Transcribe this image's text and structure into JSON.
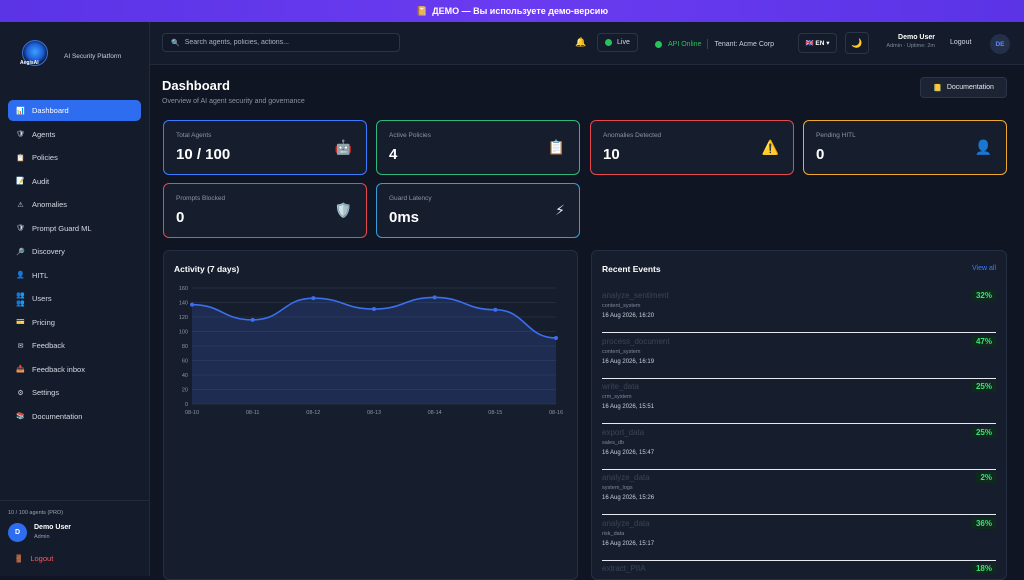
{
  "banner": {
    "icon": "📔",
    "text": "ДЕМО — Вы используете демо-версию"
  },
  "brand": {
    "logo_text": "AegisAI",
    "platform": "AI Security Platform"
  },
  "nav": [
    {
      "label": "Dashboard",
      "icon": "📊",
      "active": true
    },
    {
      "label": "Agents",
      "icon": "🛡"
    },
    {
      "label": "Policies",
      "icon": "📋"
    },
    {
      "label": "Audit",
      "icon": "📝"
    },
    {
      "label": "Anomalies",
      "icon": "⚠"
    },
    {
      "label": "Prompt Guard ML",
      "icon": "🛡"
    },
    {
      "label": "Discovery",
      "icon": "🔎"
    },
    {
      "label": "HITL",
      "icon": "👤"
    },
    {
      "label": "Users",
      "icon": "👥👥"
    },
    {
      "label": "Pricing",
      "icon": "💳"
    },
    {
      "label": "Feedback",
      "icon": "✉"
    },
    {
      "label": "Feedback inbox",
      "icon": "📥"
    },
    {
      "label": "Settings",
      "icon": "⚙"
    },
    {
      "label": "Documentation",
      "icon": "📚"
    }
  ],
  "sidebar_footer": {
    "agents": "10 / 100 agents (PRO)",
    "avatar": "D",
    "user": "Demo User",
    "role": "Admin",
    "logout": "Logout"
  },
  "topbar": {
    "search_placeholder": "Search agents, policies, actions...",
    "live": "Live",
    "api": "API Online",
    "tenant": "Tenant: Acme Corp",
    "lang": "🇬🇧 EN ▾",
    "user": "Demo User",
    "user_meta": "Admin · Uptime: 2m",
    "logout": "Logout",
    "avatar": "DE"
  },
  "page": {
    "title": "Dashboard",
    "subtitle": "Overview of AI agent security and governance",
    "doc_button": "Documentation"
  },
  "cards": [
    {
      "label": "Total Agents",
      "value": "10 / 100",
      "icon": "🤖",
      "color": "#3b7bff"
    },
    {
      "label": "Active Policies",
      "value": "4",
      "icon": "📋",
      "color": "#2fb87a"
    },
    {
      "label": "Anomalies Detected",
      "value": "10",
      "icon": "⚠️",
      "color": "#e5484d"
    },
    {
      "label": "Pending HITL",
      "value": "0",
      "icon": "👤",
      "color": "#f0a92a"
    },
    {
      "label": "Prompts Blocked",
      "value": "0",
      "icon": "🛡️",
      "color": "#e5484d"
    },
    {
      "label": "Guard Latency",
      "value": "0ms",
      "icon": "⚡",
      "color": "#3b9bd6"
    }
  ],
  "activity": {
    "title": "Activity (7 days)"
  },
  "chart_data": {
    "type": "area",
    "x": [
      "08-10",
      "08-11",
      "08-12",
      "08-13",
      "08-14",
      "08-15",
      "08-16"
    ],
    "values": [
      137,
      116,
      146,
      131,
      147,
      130,
      91
    ],
    "yticks": [
      0,
      20,
      40,
      60,
      80,
      100,
      120,
      140,
      160
    ],
    "ylim": [
      0,
      160
    ],
    "color": "#3b6ff0"
  },
  "events": {
    "title": "Recent Events",
    "view_all": "View all",
    "items": [
      {
        "title": "analyze_sentiment",
        "system": "content_system",
        "date": "16 Aug 2026, 16:20",
        "pct": "32%"
      },
      {
        "title": "process_document",
        "system": "content_system",
        "date": "16 Aug 2026, 16:19",
        "pct": "47%"
      },
      {
        "title": "write_data",
        "system": "crm_system",
        "date": "16 Aug 2026, 15:51",
        "pct": "25%"
      },
      {
        "title": "export_data",
        "system": "sales_db",
        "date": "16 Aug 2026, 15:47",
        "pct": "25%"
      },
      {
        "title": "analyze_data",
        "system": "system_logs",
        "date": "16 Aug 2026, 15:26",
        "pct": "2%"
      },
      {
        "title": "analyze_data",
        "system": "risk_data",
        "date": "16 Aug 2026, 15:17",
        "pct": "36%"
      },
      {
        "title": "extract_PIIA",
        "system": "",
        "date": "",
        "pct": "18%"
      }
    ]
  }
}
